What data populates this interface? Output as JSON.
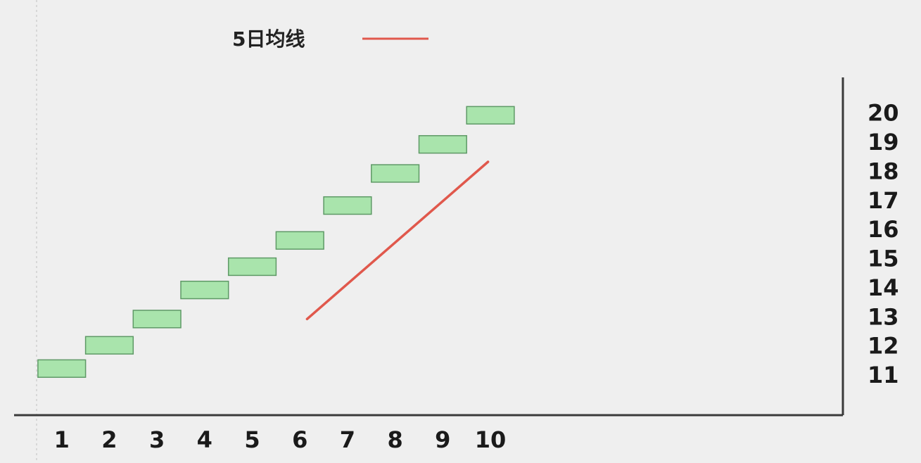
{
  "chart_data": {
    "type": "bar",
    "categories": [
      1,
      2,
      3,
      4,
      5,
      6,
      7,
      8,
      9,
      10
    ],
    "boxes": [
      {
        "x": 1,
        "low": 10.9,
        "high": 11.5
      },
      {
        "x": 2,
        "low": 11.7,
        "high": 12.3
      },
      {
        "x": 3,
        "low": 12.6,
        "high": 13.2
      },
      {
        "x": 4,
        "low": 13.6,
        "high": 14.2
      },
      {
        "x": 5,
        "low": 14.4,
        "high": 15.0
      },
      {
        "x": 6,
        "low": 15.3,
        "high": 15.9
      },
      {
        "x": 7,
        "low": 16.5,
        "high": 17.1
      },
      {
        "x": 8,
        "low": 17.6,
        "high": 18.2
      },
      {
        "x": 9,
        "low": 18.6,
        "high": 19.2
      },
      {
        "x": 10,
        "low": 19.6,
        "high": 20.2
      }
    ],
    "series": [
      {
        "name": "5日均线",
        "color": "#e0584c",
        "points": [
          [
            6.15,
            12.9
          ],
          [
            9.95,
            18.3
          ]
        ]
      }
    ],
    "x_tick_labels": [
      "1",
      "2",
      "3",
      "4",
      "5",
      "6",
      "7",
      "8",
      "9",
      "10"
    ],
    "y_tick_labels": [
      "20",
      "19",
      "18",
      "17",
      "16",
      "15",
      "14",
      "13",
      "12",
      "11"
    ],
    "y_tick_values": [
      20,
      19,
      18,
      17,
      16,
      15,
      14,
      13,
      12,
      11
    ],
    "xlim": [
      0,
      17.4
    ],
    "ylim": [
      9.6,
      21.2
    ],
    "legend": {
      "label": "5日均线",
      "position": "top-center"
    },
    "y_axis_side": "right",
    "grid": false
  },
  "colors": {
    "background": "#efefef",
    "box_fill": "#a9e4ac",
    "box_stroke": "#5e9966",
    "axis": "#3a3a3a",
    "text": "#1a1a1a",
    "line": "#e0584c",
    "dashed": "#cfcfcf"
  }
}
